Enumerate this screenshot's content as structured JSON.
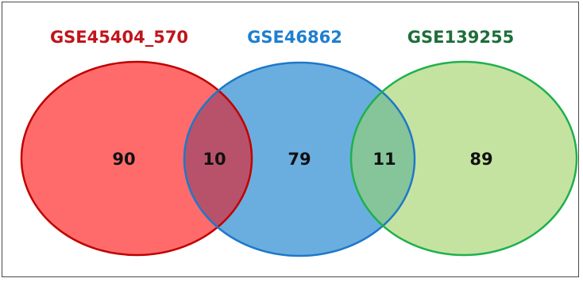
{
  "venn": {
    "sets": [
      {
        "name": "GSE45404_570",
        "color": "#c0151b",
        "fill": "#ff6b6b",
        "stroke": "#c00000"
      },
      {
        "name": "GSE46862",
        "color": "#1f7fcf",
        "fill": "#6aaedf",
        "stroke": "#1f78c8"
      },
      {
        "name": "GSE139255",
        "color": "#1e6e3a",
        "fill": "#c5e3a0",
        "stroke": "#1fb04f"
      }
    ],
    "regions": [
      {
        "sets": [
          "GSE45404_570"
        ],
        "label": "90"
      },
      {
        "sets": [
          "GSE45404_570",
          "GSE46862"
        ],
        "label": "10"
      },
      {
        "sets": [
          "GSE46862"
        ],
        "label": "79"
      },
      {
        "sets": [
          "GSE46862",
          "GSE139255"
        ],
        "label": "11"
      },
      {
        "sets": [
          "GSE139255"
        ],
        "label": "89"
      }
    ]
  }
}
